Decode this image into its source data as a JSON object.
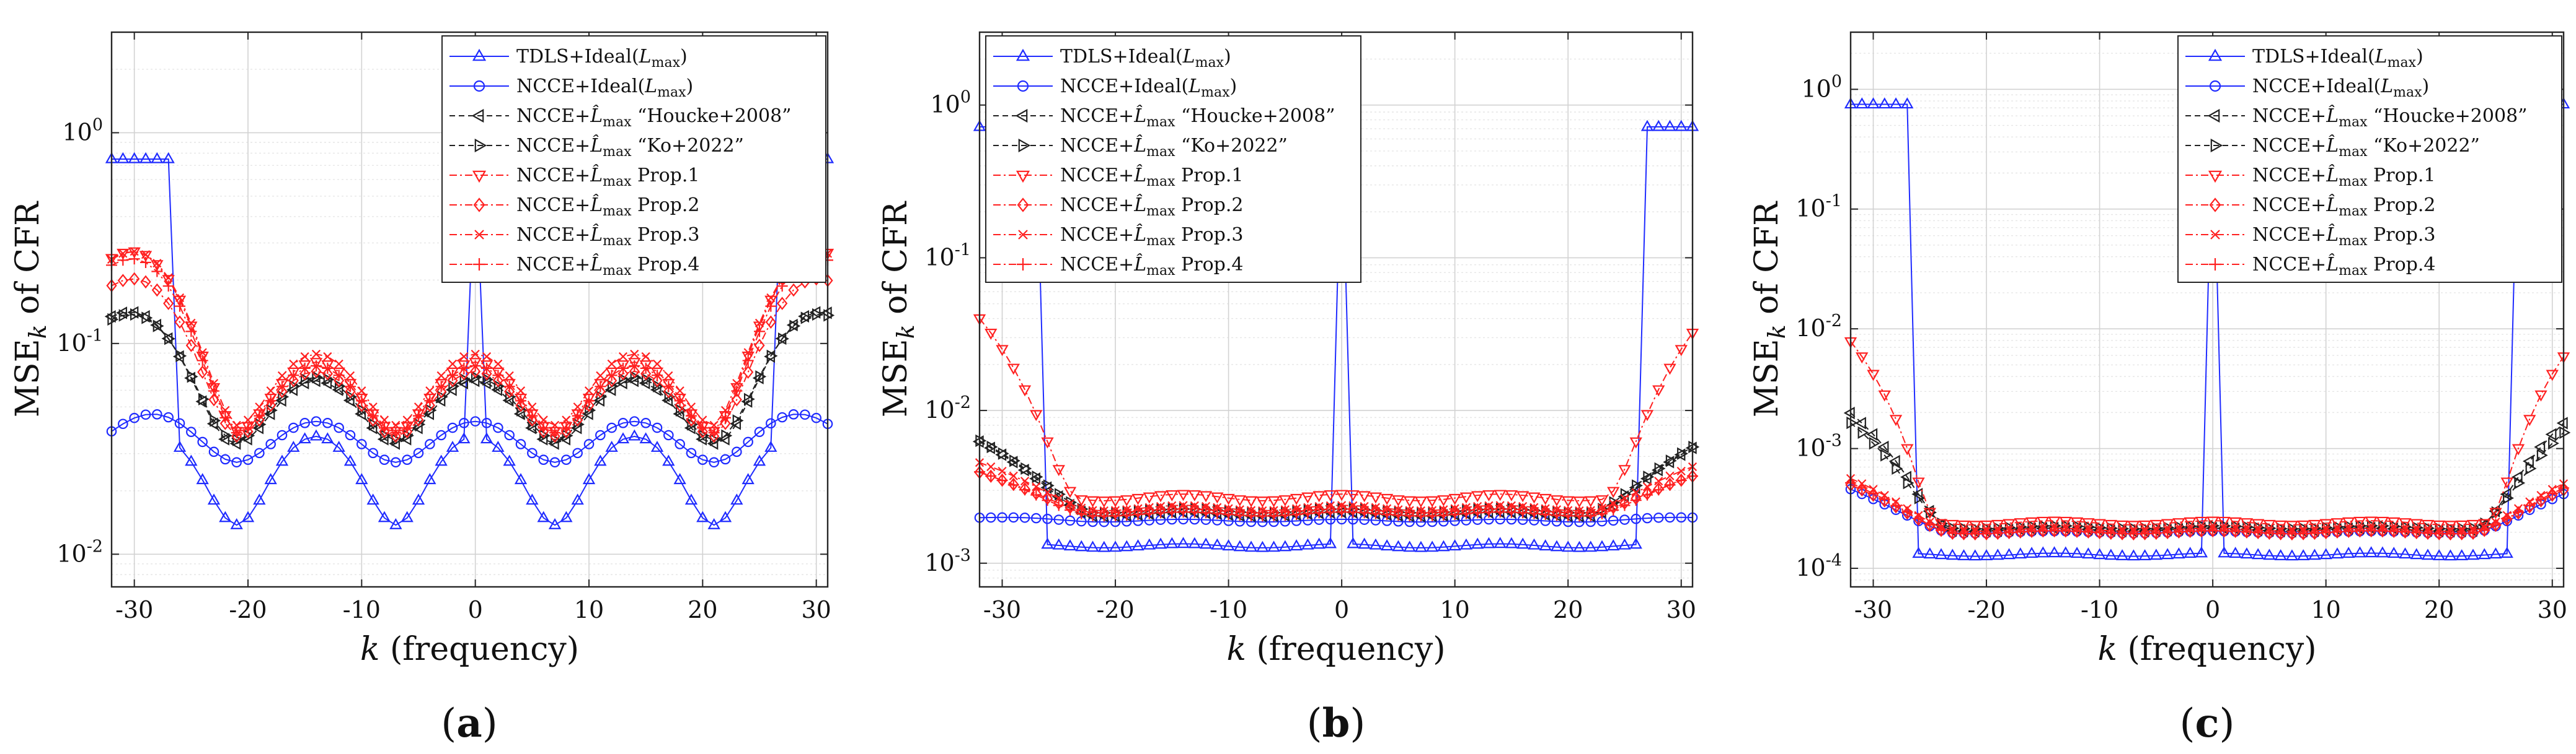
{
  "colors": {
    "blue": "#1f2bff",
    "black": "#222222",
    "red": "#ff2020",
    "grid_major": "#d2d2d2",
    "grid_minor": "#e6e6e6",
    "axis": "#262626"
  },
  "legend_entries": [
    {
      "name": "TDLS+Ideal(L_max)",
      "pre": "TDLS+Ideal(",
      "var": "L",
      "sub": "max",
      "post": ")",
      "hat": false,
      "extra": "",
      "color": "blue",
      "marker": "triangle-up",
      "dash": "solid"
    },
    {
      "name": "NCCE+Ideal(L_max)",
      "pre": "NCCE+Ideal(",
      "var": "L",
      "sub": "max",
      "post": ")",
      "hat": false,
      "extra": "",
      "color": "blue",
      "marker": "circle",
      "dash": "solid"
    },
    {
      "name": "NCCE+L̂max “Houcke+2008”",
      "pre": "NCCE+",
      "var": "L̂",
      "sub": "max",
      "post": "",
      "hat": true,
      "extra": " “Houcke+2008”",
      "color": "black",
      "marker": "triangle-left",
      "dash": "dashed"
    },
    {
      "name": "NCCE+L̂max “Ko+2022”",
      "pre": "NCCE+",
      "var": "L̂",
      "sub": "max",
      "post": "",
      "hat": true,
      "extra": " “Ko+2022”",
      "color": "black",
      "marker": "triangle-right",
      "dash": "dashed"
    },
    {
      "name": "NCCE+L̂max Prop.1",
      "pre": "NCCE+",
      "var": "L̂",
      "sub": "max",
      "post": "",
      "hat": true,
      "extra": " Prop.1",
      "color": "red",
      "marker": "triangle-down",
      "dash": "dashdot"
    },
    {
      "name": "NCCE+L̂max Prop.2",
      "pre": "NCCE+",
      "var": "L̂",
      "sub": "max",
      "post": "",
      "hat": true,
      "extra": " Prop.2",
      "color": "red",
      "marker": "diamond",
      "dash": "dashdot"
    },
    {
      "name": "NCCE+L̂max Prop.3",
      "pre": "NCCE+",
      "var": "L̂",
      "sub": "max",
      "post": "",
      "hat": true,
      "extra": " Prop.3",
      "color": "red",
      "marker": "x",
      "dash": "dashdot"
    },
    {
      "name": "NCCE+L̂max Prop.4",
      "pre": "NCCE+",
      "var": "L̂",
      "sub": "max",
      "post": "",
      "hat": true,
      "extra": " Prop.4",
      "color": "red",
      "marker": "plus",
      "dash": "dashdot"
    }
  ],
  "chart_data": [
    {
      "type": "line",
      "panel_label": "(a)",
      "panel_letter": "a",
      "yscale": "log",
      "ylabel": "MSE_k of CFR",
      "xlabel": "k (frequency)",
      "xlim": [
        -32,
        31
      ],
      "ylim": [
        0.007,
        3
      ],
      "xticks": [
        -30,
        -20,
        -10,
        0,
        10,
        20,
        30
      ],
      "xtick_labels": [
        "-30",
        "-20",
        "-10",
        "0",
        "10",
        "20",
        "30"
      ],
      "yticks": [
        0.01,
        0.1,
        1
      ],
      "ytick_labels": [
        "10^-2",
        "10^-1",
        "10^0"
      ],
      "series_params": [
        {
          "name": "TDLS+Ideal(L_max)",
          "model": "tdls",
          "base": 0.025,
          "amp": 0.45,
          "edge": 0.75,
          "edge_start": 27,
          "center": 0.75
        },
        {
          "name": "NCCE+Ideal(L_max)",
          "model": "ripple",
          "base": 0.035,
          "amp": 0.22,
          "edge_amp": 0.15,
          "edge_start": 21,
          "edge_pow": 1.4
        },
        {
          "name": "NCCE+L̂max “Houcke+2008”",
          "model": "ripple",
          "base": 0.05,
          "amp": 0.33,
          "edge_amp": 1.9,
          "edge_start": 22,
          "edge_pow": 1.6
        },
        {
          "name": "NCCE+L̂max “Ko+2022”",
          "model": "ripple",
          "base": 0.052,
          "amp": 0.33,
          "edge_amp": 1.7,
          "edge_start": 22,
          "edge_pow": 1.6
        },
        {
          "name": "NCCE+L̂max Prop.1",
          "model": "ripple",
          "base": 0.06,
          "amp": 0.36,
          "edge_amp": 3.6,
          "edge_start": 21,
          "edge_pow": 1.4
        },
        {
          "name": "NCCE+L̂max Prop.2",
          "model": "ripple",
          "base": 0.055,
          "amp": 0.34,
          "edge_amp": 2.7,
          "edge_start": 21,
          "edge_pow": 1.4
        },
        {
          "name": "NCCE+L̂max Prop.3",
          "model": "ripple",
          "base": 0.065,
          "amp": 0.37,
          "edge_amp": 3.2,
          "edge_start": 21,
          "edge_pow": 1.4
        },
        {
          "name": "NCCE+L̂max Prop.4",
          "model": "ripple",
          "base": 0.058,
          "amp": 0.35,
          "edge_amp": 3.4,
          "edge_start": 21,
          "edge_pow": 1.4
        }
      ]
    },
    {
      "type": "line",
      "panel_label": "(b)",
      "panel_letter": "b",
      "yscale": "log",
      "ylabel": "MSE_k of CFR",
      "xlabel": "k (frequency)",
      "xlim": [
        -32,
        31
      ],
      "ylim": [
        0.0007,
        3
      ],
      "xticks": [
        -30,
        -20,
        -10,
        0,
        10,
        20,
        30
      ],
      "xtick_labels": [
        "-30",
        "-20",
        "-10",
        "0",
        "10",
        "20",
        "30"
      ],
      "yticks": [
        0.001,
        0.01,
        0.1,
        1
      ],
      "ytick_labels": [
        "10^-3",
        "10^-2",
        "10^-1",
        "10^0"
      ],
      "series_params": [
        {
          "name": "TDLS+Ideal(L_max)",
          "model": "tdls",
          "base": 0.0013,
          "amp": 0.03,
          "edge": 0.72,
          "edge_start": 27,
          "center": 0.72
        },
        {
          "name": "NCCE+Ideal(L_max)",
          "model": "ripple",
          "base": 0.0019,
          "amp": 0.02,
          "edge_amp": 0.05,
          "edge_start": 22,
          "edge_pow": 1.4
        },
        {
          "name": "NCCE+L̂max “Houcke+2008”",
          "model": "ripple",
          "base": 0.0021,
          "amp": 0.03,
          "edge_amp": 2.0,
          "edge_start": 22,
          "edge_pow": 1.6
        },
        {
          "name": "NCCE+L̂max “Ko+2022”",
          "model": "ripple",
          "base": 0.0022,
          "amp": 0.03,
          "edge_amp": 1.9,
          "edge_start": 22,
          "edge_pow": 1.6
        },
        {
          "name": "NCCE+L̂max Prop.1",
          "model": "ripple",
          "base": 0.0027,
          "amp": 0.05,
          "edge_amp": 14.0,
          "edge_start": 23,
          "edge_pow": 2.2
        },
        {
          "name": "NCCE+L̂max Prop.2",
          "model": "ripple",
          "base": 0.0022,
          "amp": 0.03,
          "edge_amp": 0.8,
          "edge_start": 22,
          "edge_pow": 1.6
        },
        {
          "name": "NCCE+L̂max Prop.3",
          "model": "ripple",
          "base": 0.0023,
          "amp": 0.04,
          "edge_amp": 1.0,
          "edge_start": 22,
          "edge_pow": 1.6
        },
        {
          "name": "NCCE+L̂max Prop.4",
          "model": "ripple",
          "base": 0.0021,
          "amp": 0.03,
          "edge_amp": 0.9,
          "edge_start": 22,
          "edge_pow": 1.6
        }
      ]
    },
    {
      "type": "line",
      "panel_label": "(c)",
      "panel_letter": "c",
      "yscale": "log",
      "ylabel": "MSE_k of CFR",
      "xlabel": "k (frequency)",
      "xlim": [
        -32,
        31
      ],
      "ylim": [
        7e-05,
        3
      ],
      "xticks": [
        -30,
        -20,
        -10,
        0,
        10,
        20,
        30
      ],
      "xtick_labels": [
        "-30",
        "-20",
        "-10",
        "0",
        "10",
        "20",
        "30"
      ],
      "yticks": [
        0.0001,
        0.001,
        0.01,
        0.1,
        1
      ],
      "ytick_labels": [
        "10^-4",
        "10^-3",
        "10^-2",
        "10^-1",
        "10^0"
      ],
      "series_params": [
        {
          "name": "TDLS+Ideal(L_max)",
          "model": "tdls",
          "base": 0.00013,
          "amp": 0.03,
          "edge": 0.75,
          "edge_start": 27,
          "center": 0.75
        },
        {
          "name": "NCCE+Ideal(L_max)",
          "model": "ripple",
          "base": 0.0002,
          "amp": 0.02,
          "edge_amp": 1.3,
          "edge_start": 23,
          "edge_pow": 1.6
        },
        {
          "name": "NCCE+L̂max “Houcke+2008”",
          "model": "ripple",
          "base": 0.00021,
          "amp": 0.03,
          "edge_amp": 8.5,
          "edge_start": 23,
          "edge_pow": 2.0
        },
        {
          "name": "NCCE+L̂max “Ko+2022”",
          "model": "ripple",
          "base": 0.00022,
          "amp": 0.03,
          "edge_amp": 6.5,
          "edge_start": 23,
          "edge_pow": 2.0
        },
        {
          "name": "NCCE+L̂max Prop.1",
          "model": "ripple",
          "base": 0.00024,
          "amp": 0.04,
          "edge_amp": 32.0,
          "edge_start": 24,
          "edge_pow": 2.4
        },
        {
          "name": "NCCE+L̂max Prop.2",
          "model": "ripple",
          "base": 0.0002,
          "amp": 0.03,
          "edge_amp": 1.5,
          "edge_start": 23,
          "edge_pow": 1.6
        },
        {
          "name": "NCCE+L̂max Prop.3",
          "model": "ripple",
          "base": 0.00021,
          "amp": 0.03,
          "edge_amp": 1.7,
          "edge_start": 23,
          "edge_pow": 1.6
        },
        {
          "name": "NCCE+L̂max Prop.4",
          "model": "ripple",
          "base": 0.0002,
          "amp": 0.03,
          "edge_amp": 1.6,
          "edge_start": 23,
          "edge_pow": 1.6
        }
      ]
    }
  ]
}
